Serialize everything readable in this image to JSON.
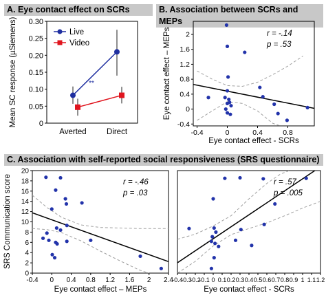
{
  "panels": {
    "a": {
      "title": "A. Eye contact effect on SCRs"
    },
    "b": {
      "title": "B. Association between SCRs and MEPs"
    },
    "c": {
      "title": "C. Association with self-reported social responsiveness (SRS questionnaire)"
    }
  },
  "colors": {
    "live": "#1f2fa0",
    "video": "#e0141e",
    "header_bg": "#c8c8c8",
    "ci": "#a0a0a0",
    "dots": "#2233aa"
  },
  "chart_data": [
    {
      "id": "A",
      "type": "line",
      "title": "Eye contact effect on SCRs",
      "categories": [
        "Averted",
        "Direct"
      ],
      "ylabel": "Mean SC response  (µSiemens)",
      "ylim": [
        0,
        0.3
      ],
      "yticks": [
        "0",
        "0.05",
        "0.10",
        "0.15",
        "0.20",
        "0.25",
        "0.30"
      ],
      "annotation": "**",
      "series": [
        {
          "name": "Live",
          "values": [
            0.082,
            0.21
          ],
          "err_low": [
            0.057,
            0.14
          ],
          "err_high": [
            0.108,
            0.275
          ],
          "marker": "circle"
        },
        {
          "name": "Video",
          "values": [
            0.047,
            0.082
          ],
          "err_low": [
            0.022,
            0.058
          ],
          "err_high": [
            0.072,
            0.107
          ],
          "marker": "square"
        }
      ]
    },
    {
      "id": "B",
      "type": "scatter",
      "title": "Association between SCRs and MEPs",
      "xlabel": "Eye contact effect - SCRs",
      "ylabel": "Eye contact effect – MEPs",
      "xlim": [
        -0.45,
        1.15
      ],
      "ylim": [
        -0.45,
        2.35
      ],
      "xticks": [
        "-0.4",
        "0",
        "0.4",
        "0.8"
      ],
      "yticks": [
        "-0.4",
        "0",
        "0.4",
        "0.8",
        "1.2",
        "1.6",
        "2"
      ],
      "stats": [
        "r = -.14",
        "p = .53"
      ],
      "x": [
        -0.25,
        -0.01,
        0.0,
        0.01,
        0.0,
        -0.03,
        0.02,
        0.03,
        0.05,
        -0.02,
        0.0,
        0.04,
        0.23,
        0.0,
        0.43,
        0.47,
        0.62,
        0.67,
        0.79,
        1.06
      ],
      "y": [
        0.31,
        2.25,
        1.68,
        0.86,
        0.49,
        0.31,
        0.26,
        0.18,
        0.09,
        0.0,
        -0.1,
        -0.14,
        1.52,
        0.15,
        0.58,
        0.33,
        0.13,
        -0.12,
        -0.3,
        0.04
      ],
      "fit": {
        "intercept": 0.48,
        "slope": -0.4
      },
      "ci_upper": [
        [
          -0.4,
          1.02
        ],
        [
          -0.2,
          0.8
        ],
        [
          0.0,
          0.63
        ],
        [
          0.2,
          0.61
        ],
        [
          0.4,
          0.72
        ],
        [
          0.6,
          0.92
        ],
        [
          0.8,
          1.15
        ],
        [
          1.0,
          1.42
        ]
      ],
      "ci_lower": [
        [
          -0.4,
          -0.3
        ],
        [
          -0.2,
          -0.05
        ],
        [
          0.0,
          0.2
        ],
        [
          0.2,
          0.15
        ],
        [
          0.4,
          -0.05
        ],
        [
          0.6,
          -0.38
        ],
        [
          0.7,
          -0.45
        ]
      ]
    },
    {
      "id": "C1",
      "type": "scatter",
      "title": "Association with self-reported social responsiveness (SRS questionnaire)",
      "xlabel": "Eye contact effect – MEPs",
      "ylabel": "SRS Communication score",
      "xlim": [
        -0.4,
        2.4
      ],
      "ylim": [
        0,
        20
      ],
      "xticks": [
        "-0.4",
        "0",
        "0.4",
        "0.8",
        "1.2",
        "1.6",
        "2",
        "2.4"
      ],
      "yticks": [
        "0",
        "2",
        "4",
        "6",
        "8",
        "10",
        "12",
        "14",
        "16",
        "18",
        "20"
      ],
      "stats": [
        "r = -.46",
        "p = .03"
      ],
      "x": [
        -0.12,
        0.18,
        0.08,
        0.28,
        0.3,
        0.62,
        0.0,
        0.1,
        0.18,
        0.31,
        -0.1,
        -0.18,
        -0.06,
        0.08,
        0.31,
        0.11,
        0.01,
        0.06,
        0.8,
        1.82,
        2.25
      ],
      "y": [
        18.7,
        18.6,
        16.2,
        14.5,
        13.5,
        13.7,
        12.5,
        8.8,
        8.4,
        9.3,
        7.8,
        6.8,
        6.4,
        6.0,
        6.2,
        5.7,
        3.6,
        3.0,
        6.4,
        3.3,
        0.9
      ],
      "fit": {
        "intercept": 10.4,
        "slope": -3.4
      },
      "ci_upper": [
        [
          -0.4,
          15.2
        ],
        [
          -0.1,
          12.8
        ],
        [
          0.2,
          10.9
        ],
        [
          0.6,
          9.4
        ],
        [
          1.0,
          8.9
        ],
        [
          1.4,
          8.8
        ],
        [
          1.8,
          8.7
        ],
        [
          2.4,
          8.7
        ]
      ],
      "ci_lower": [
        [
          -0.4,
          8.7
        ],
        [
          -0.1,
          8.5
        ],
        [
          0.2,
          7.9
        ],
        [
          0.6,
          6.3
        ],
        [
          1.0,
          4.3
        ],
        [
          1.4,
          2.4
        ],
        [
          1.8,
          0.6
        ],
        [
          2.0,
          0.0
        ]
      ]
    },
    {
      "id": "C2",
      "type": "scatter",
      "xlabel": "Eye contact effect - SCRs",
      "xlim": [
        -0.4,
        1.2
      ],
      "ylim": [
        0,
        20
      ],
      "xticks": [
        "-0.4",
        "-0.3",
        "-0.2",
        "-0.1",
        "0",
        "0.1",
        "0.2",
        "0.3",
        "0.4",
        "0.5",
        "0.6",
        "0.7",
        "0.8",
        "0.9",
        "1",
        "1.1",
        "1.2"
      ],
      "stats": [
        "r = .57",
        "p = .005"
      ],
      "x": [
        0.13,
        0.3,
        0.56,
        1.04,
        0.0,
        -0.27,
        0.01,
        0.03,
        0.31,
        -0.01,
        -0.02,
        0.02,
        0.06,
        0.25,
        0.43,
        0.57,
        0.69,
        0.01,
        -0.02
      ],
      "y": [
        18.5,
        18.6,
        18.4,
        18.5,
        14.5,
        8.7,
        8.8,
        8.0,
        8.5,
        7.1,
        6.2,
        5.8,
        5.2,
        6.4,
        5.4,
        9.5,
        13.5,
        3.0,
        0.9
      ],
      "fit": {
        "intercept": 6.7,
        "slope": 11.7
      },
      "ci_upper": [
        [
          -0.4,
          6.6
        ],
        [
          -0.2,
          7.6
        ],
        [
          0.0,
          9.2
        ],
        [
          0.2,
          11.2
        ],
        [
          0.4,
          14.5
        ],
        [
          0.6,
          17.5
        ],
        [
          0.75,
          19.3
        ],
        [
          0.85,
          20.0
        ]
      ],
      "ci_lower": [
        [
          -0.4,
          0.0
        ],
        [
          -0.2,
          2.3
        ],
        [
          0.0,
          5.3
        ],
        [
          0.2,
          7.5
        ],
        [
          0.4,
          8.7
        ],
        [
          0.6,
          9.8
        ],
        [
          0.8,
          11.2
        ],
        [
          1.0,
          12.7
        ],
        [
          1.2,
          14.0
        ]
      ]
    }
  ]
}
